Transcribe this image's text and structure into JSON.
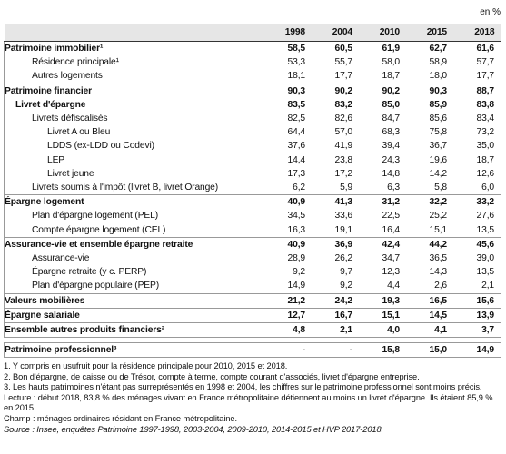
{
  "unit": "en %",
  "table": {
    "columns": [
      "1998",
      "2004",
      "2010",
      "2015",
      "2018"
    ],
    "rows": [
      {
        "label": "Patrimoine immobilier¹",
        "values": [
          "58,5",
          "60,5",
          "61,9",
          "62,7",
          "61,6"
        ]
      },
      {
        "label": "Résidence principale¹",
        "values": [
          "53,3",
          "55,7",
          "58,0",
          "58,9",
          "57,7"
        ]
      },
      {
        "label": "Autres logements",
        "values": [
          "18,1",
          "17,7",
          "18,7",
          "18,0",
          "17,7"
        ]
      },
      {
        "label": "Patrimoine financier",
        "values": [
          "90,3",
          "90,2",
          "90,2",
          "90,3",
          "88,7"
        ]
      },
      {
        "label": "Livret d'épargne",
        "values": [
          "83,5",
          "83,2",
          "85,0",
          "85,9",
          "83,8"
        ]
      },
      {
        "label": "Livrets défiscalisés",
        "values": [
          "82,5",
          "82,6",
          "84,7",
          "85,6",
          "83,4"
        ]
      },
      {
        "label": "Livret A ou Bleu",
        "values": [
          "64,4",
          "57,0",
          "68,3",
          "75,8",
          "73,2"
        ]
      },
      {
        "label": "LDDS (ex-LDD ou Codevi)",
        "values": [
          "37,6",
          "41,9",
          "39,4",
          "36,7",
          "35,0"
        ]
      },
      {
        "label": "LEP",
        "values": [
          "14,4",
          "23,8",
          "24,3",
          "19,6",
          "18,7"
        ]
      },
      {
        "label": "Livret jeune",
        "values": [
          "17,3",
          "17,2",
          "14,8",
          "14,2",
          "12,6"
        ]
      },
      {
        "label": "Livrets soumis à l'impôt (livret B, livret Orange)",
        "values": [
          "6,2",
          "5,9",
          "6,3",
          "5,8",
          "6,0"
        ]
      },
      {
        "label": "Épargne logement",
        "values": [
          "40,9",
          "41,3",
          "31,2",
          "32,2",
          "33,2"
        ]
      },
      {
        "label": "Plan d'épargne logement (PEL)",
        "values": [
          "34,5",
          "33,6",
          "22,5",
          "25,2",
          "27,6"
        ]
      },
      {
        "label": "Compte épargne logement (CEL)",
        "values": [
          "16,3",
          "19,1",
          "16,4",
          "15,1",
          "13,5"
        ]
      },
      {
        "label": "Assurance-vie et ensemble épargne retraite",
        "values": [
          "40,9",
          "36,9",
          "42,4",
          "44,2",
          "45,6"
        ]
      },
      {
        "label": "Assurance-vie",
        "values": [
          "28,9",
          "26,2",
          "34,7",
          "36,5",
          "39,0"
        ]
      },
      {
        "label": "Épargne retraite (y c. PERP)",
        "values": [
          "9,2",
          "9,7",
          "12,3",
          "14,3",
          "13,5"
        ]
      },
      {
        "label": "Plan d'épargne populaire (PEP)",
        "values": [
          "14,9",
          "9,2",
          "4,4",
          "2,6",
          "2,1"
        ]
      },
      {
        "label": "Valeurs mobilières",
        "values": [
          "21,2",
          "24,2",
          "19,3",
          "16,5",
          "15,6"
        ]
      },
      {
        "label": "Épargne salariale",
        "values": [
          "12,7",
          "16,7",
          "15,1",
          "14,5",
          "13,9"
        ]
      },
      {
        "label": "Ensemble autres produits financiers²",
        "values": [
          "4,8",
          "2,1",
          "4,0",
          "4,1",
          "3,7"
        ]
      },
      {
        "label": "Patrimoine professionnel³",
        "values": [
          "-",
          "-",
          "15,8",
          "15,0",
          "14,9"
        ]
      }
    ]
  },
  "notes": [
    "1. Y compris en usufruit pour la résidence principale pour 2010, 2015 et 2018.",
    "2. Bon d'épargne, de caisse ou de Trésor, compte à terme, compte courant d'associés, livret d'épargne entreprise.",
    "3. Les hauts patrimoines n'étant pas surreprésentés en 1998 et 2004, les chiffres sur le patrimoine professionnel sont moins précis.",
    "Lecture : début 2018, 83,8 % des ménages vivant en France métropolitaine détiennent au moins un livret d'épargne. Ils étaient 85,9 % en 2015.",
    "Champ : ménages ordinaires résidant en France métropolitaine.",
    "Source : Insee, enquêtes Patrimoine 1997-1998, 2003-2004, 2009-2010, 2014-2015 et HVP 2017-2018."
  ]
}
